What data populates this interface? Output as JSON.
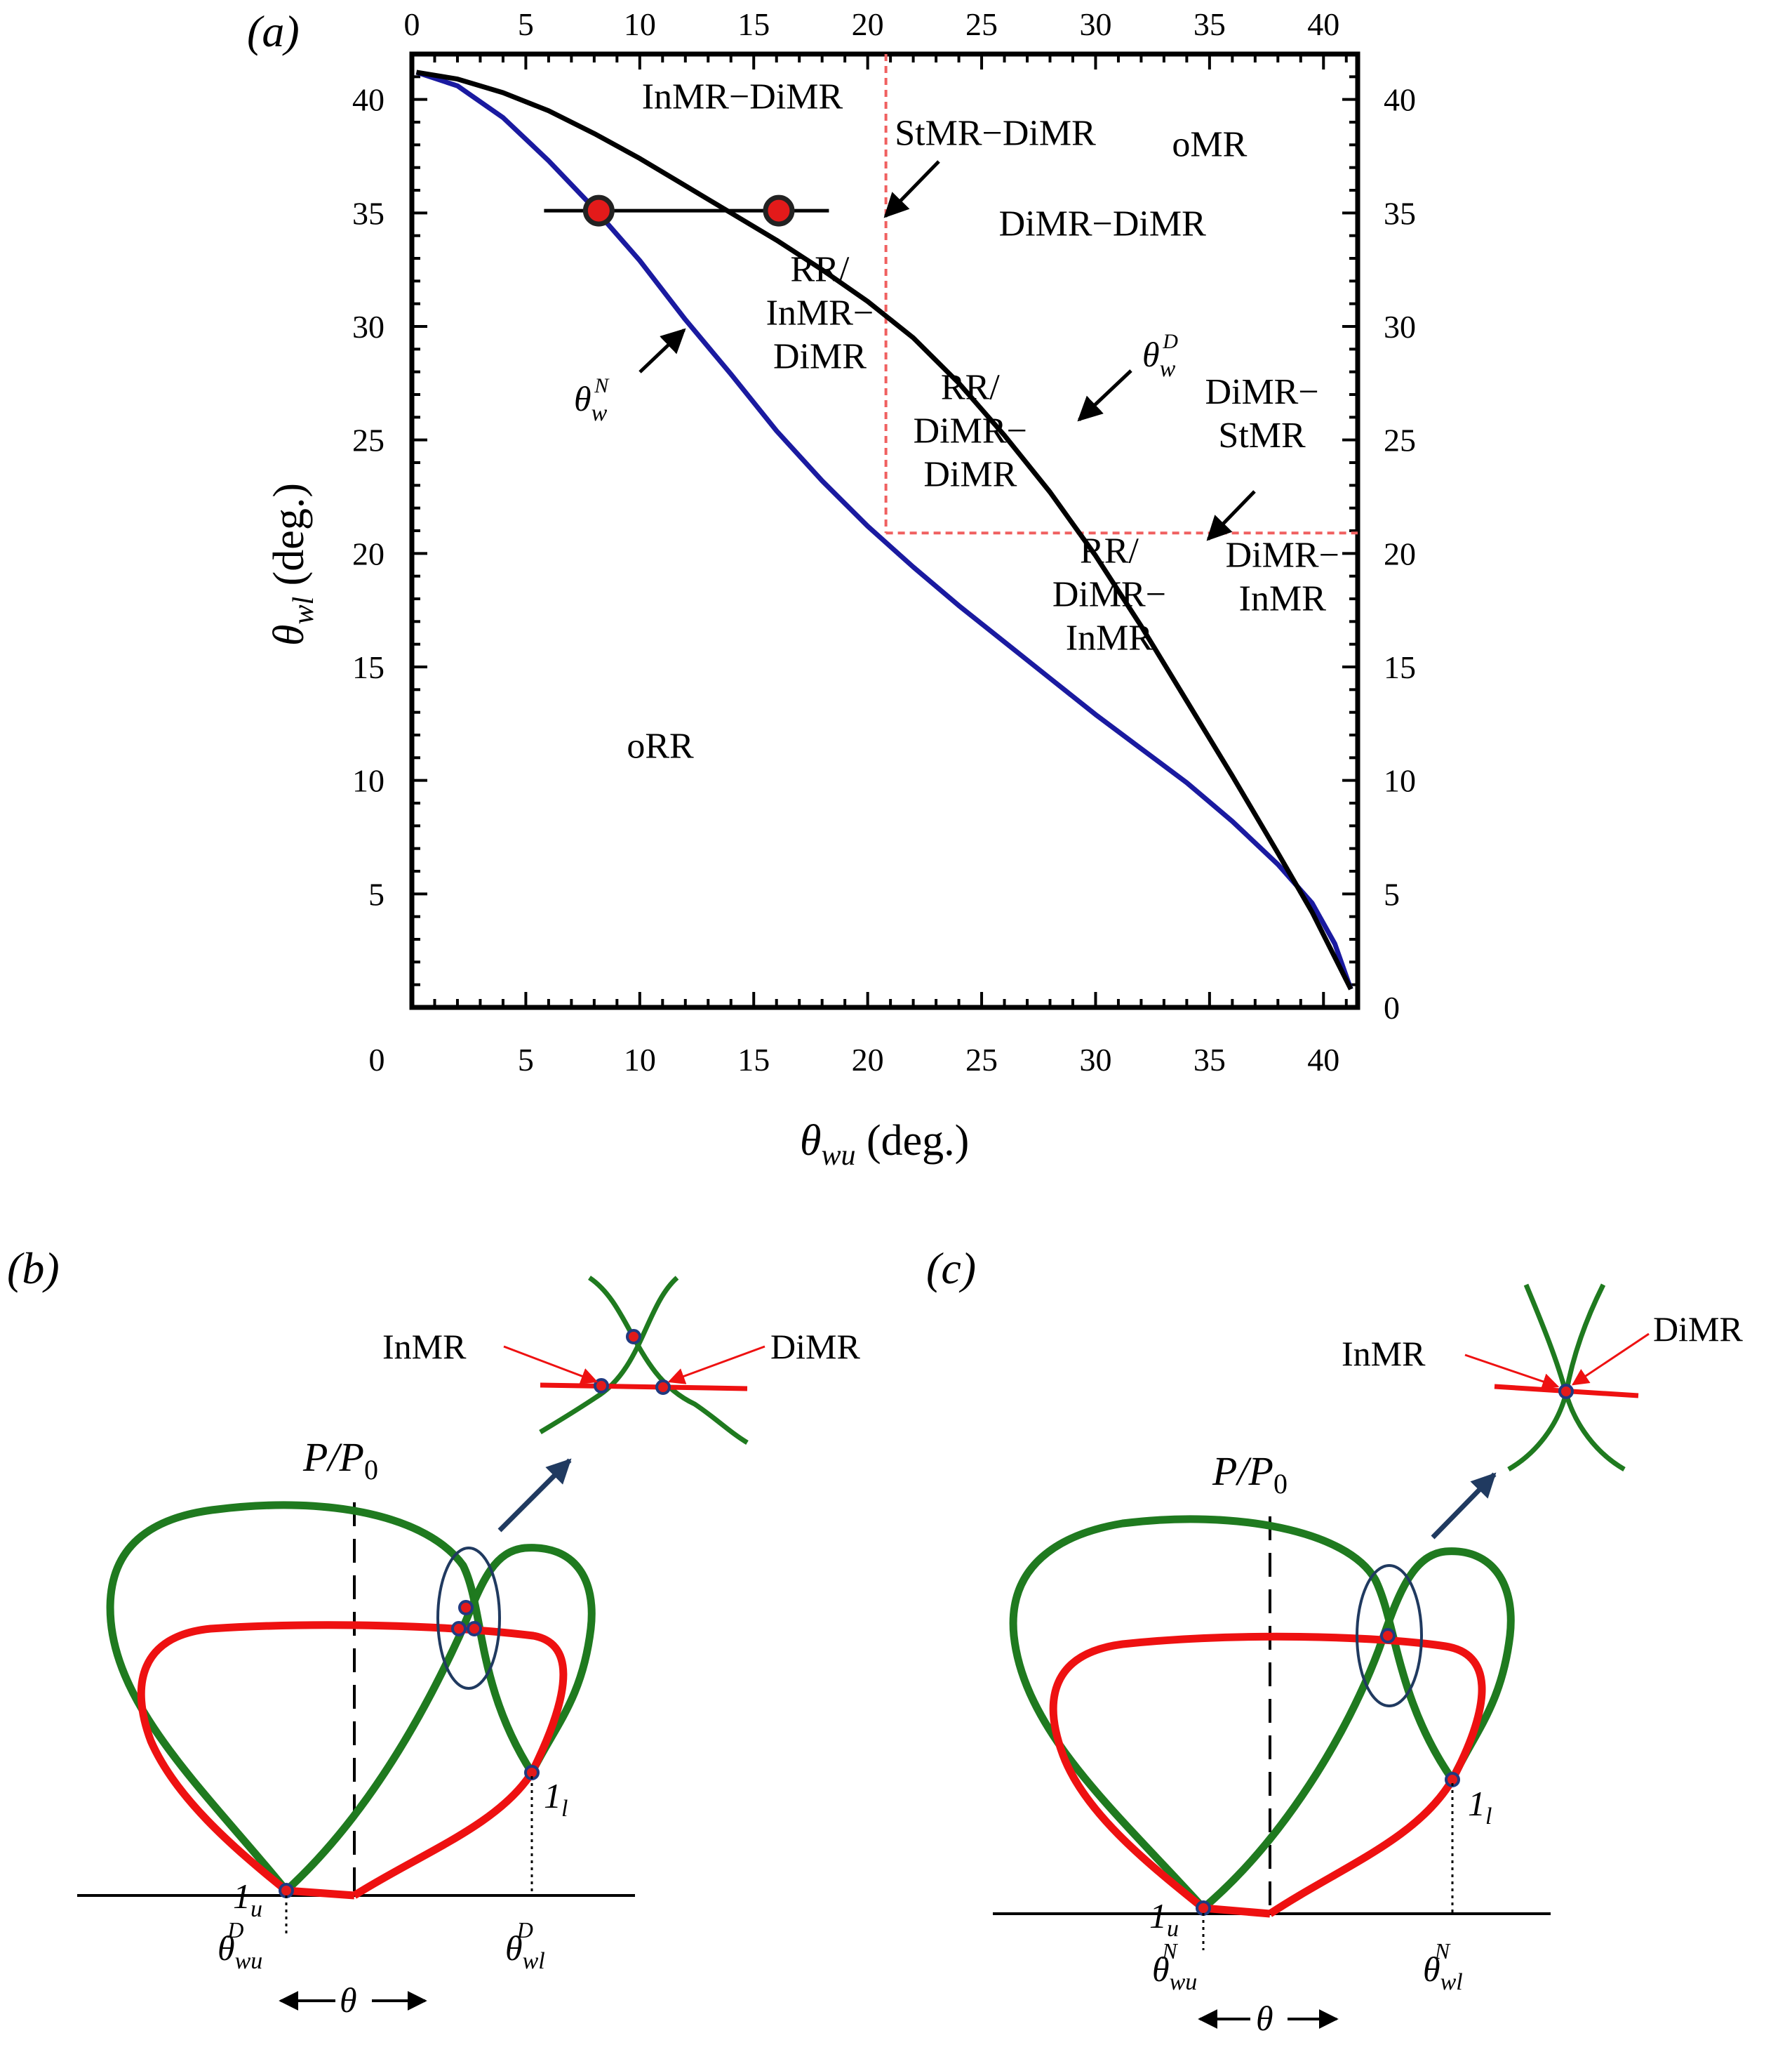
{
  "panels": {
    "a": "(a)",
    "b": "(b)",
    "c": "(c)"
  },
  "colors": {
    "theta_N": "#1a1aa0",
    "theta_D": "#000000",
    "boundary": "#f06060",
    "shock_green": "#1f7a1f",
    "shock_red": "#ee1111",
    "marker_fill": "#e31a1a",
    "arrow_navy": "#203a60"
  },
  "chart_data": {
    "type": "line",
    "xlabel": "θwu (deg.)",
    "ylabel": "θwl (deg.)",
    "xlim": [
      0,
      41.5
    ],
    "ylim": [
      0,
      42
    ],
    "xticks": [
      0,
      5,
      10,
      15,
      20,
      25,
      30,
      35,
      40
    ],
    "yticks": [
      5,
      10,
      15,
      20,
      25,
      30,
      35,
      40
    ],
    "right_yticks": [
      0,
      5,
      10,
      15,
      20,
      25,
      30,
      35,
      40
    ],
    "top_xticks": [
      0,
      5,
      10,
      15,
      20,
      25,
      30,
      35,
      40
    ],
    "series": [
      {
        "name": "θwN",
        "x": [
          0.2,
          2,
          4,
          6,
          8,
          10,
          12,
          14,
          16,
          18,
          20,
          22,
          24,
          26,
          28,
          30,
          32,
          34,
          36,
          38,
          39.5,
          40.5,
          41.2
        ],
        "y": [
          41.2,
          40.6,
          39.2,
          37.3,
          35.2,
          32.9,
          30.3,
          27.9,
          25.4,
          23.2,
          21.2,
          19.4,
          17.7,
          16.1,
          14.5,
          12.9,
          11.4,
          9.9,
          8.2,
          6.3,
          4.6,
          2.8,
          0.8
        ]
      },
      {
        "name": "θwD",
        "x": [
          0.2,
          2,
          4,
          6,
          8,
          10,
          12,
          14,
          16,
          18,
          20,
          22,
          24,
          26,
          28,
          30,
          32,
          34,
          36,
          38,
          39.5,
          40.4,
          41.2
        ],
        "y": [
          41.2,
          40.9,
          40.3,
          39.5,
          38.5,
          37.4,
          36.2,
          35.0,
          33.8,
          32.5,
          31.1,
          29.5,
          27.5,
          25.2,
          22.7,
          19.9,
          16.8,
          13.5,
          10.2,
          6.8,
          4.2,
          2.4,
          0.8
        ]
      }
    ],
    "boundaries": {
      "vertical_x": 20.8,
      "horizontal_y": 20.9
    },
    "markers": [
      {
        "x": 8.2,
        "y": 35.1
      },
      {
        "x": 16.1,
        "y": 35.1
      }
    ],
    "marker_line": {
      "x0": 5.8,
      "x1": 18.3,
      "y": 35.1
    },
    "regions": [
      {
        "lines": [
          "InMR−DiMR"
        ],
        "x": 14.5,
        "y": 39.6
      },
      {
        "lines": [
          "StMR−DiMR"
        ],
        "x": 25.6,
        "y": 38.0
      },
      {
        "lines": [
          "oMR"
        ],
        "x": 35.0,
        "y": 37.5
      },
      {
        "lines": [
          "DiMR−DiMR"
        ],
        "x": 30.3,
        "y": 34.0
      },
      {
        "lines": [
          "RR/",
          "InMR−",
          "DiMR"
        ],
        "x": 17.9,
        "y": 32.0
      },
      {
        "lines": [
          "RR/",
          "DiMR−",
          "DiMR"
        ],
        "x": 24.5,
        "y": 26.8
      },
      {
        "lines": [
          "DiMR−",
          "StMR"
        ],
        "x": 37.3,
        "y": 26.6
      },
      {
        "lines": [
          "RR/",
          "DiMR−",
          "InMR"
        ],
        "x": 30.6,
        "y": 19.6
      },
      {
        "lines": [
          "DiMR−",
          "InMR"
        ],
        "x": 38.2,
        "y": 19.4
      },
      {
        "lines": [
          "oRR"
        ],
        "x": 10.9,
        "y": 11.0
      }
    ],
    "curve_labels": {
      "N": "θwN",
      "D": "θwD"
    }
  },
  "diagram_b": {
    "axis_label": "P/P0",
    "point_upper": "1u",
    "point_lower": "1l",
    "angle_upper": "θDwu",
    "angle_lower": "θDwl",
    "theta": "θ",
    "inset_left": "InMR",
    "inset_right": "DiMR"
  },
  "diagram_c": {
    "axis_label": "P/P0",
    "point_upper": "1u",
    "point_lower": "1l",
    "angle_upper": "θNwu",
    "angle_lower": "θNwl",
    "theta": "θ",
    "inset_left": "InMR",
    "inset_right": "DiMR"
  }
}
